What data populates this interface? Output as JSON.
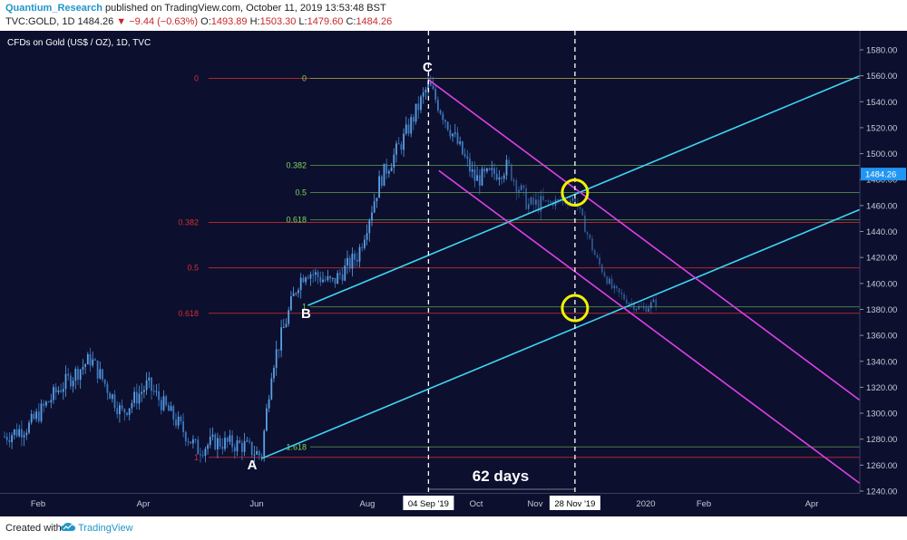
{
  "header": {
    "author": "Quantium_Research",
    "published": "published on TradingView.com, October 11, 2019 13:53:48 BST",
    "symbol": "TVC:GOLD, 1D",
    "last": "1484.26",
    "change": "▼ −9.44 (−0.63%)",
    "o_label": "O:",
    "o_val": "1493.89",
    "h_label": "H:",
    "h_val": "1503.30",
    "l_label": "L:",
    "l_val": "1479.60",
    "c_label": "C:",
    "c_val": "1484.26"
  },
  "footer": {
    "created_with": "Created with",
    "brand": "TradingView"
  },
  "colors": {
    "background": "#0c0f2e",
    "candle": "#5aa0e6",
    "trendline": "#3ed6f2",
    "channel": "#e040e6",
    "circle": "#f2f200",
    "fib_red": "#d32f2f",
    "fib_green": "#7ed957",
    "price_tag": "#2196f3"
  },
  "chart_data": {
    "type": "candlestick",
    "title": "CFDs on Gold (US$ / OZ), 1D, TVC",
    "ylim": [
      1235,
      1592
    ],
    "y_ticks": [
      1240,
      1260,
      1280,
      1300,
      1320,
      1340,
      1360,
      1380,
      1400,
      1420,
      1440,
      1460,
      1480,
      1500,
      1520,
      1540,
      1560,
      1580
    ],
    "x_labels": [
      "Feb",
      "Apr",
      "Jun",
      "Aug",
      "Oct",
      "Nov",
      "2020",
      "Feb",
      "Apr"
    ],
    "last_price": "1484.26",
    "price_path": [
      [
        "2019-01-01",
        1282
      ],
      [
        "2019-01-15",
        1290
      ],
      [
        "2019-02-01",
        1318
      ],
      [
        "2019-02-20",
        1342
      ],
      [
        "2019-03-10",
        1300
      ],
      [
        "2019-03-25",
        1322
      ],
      [
        "2019-04-10",
        1295
      ],
      [
        "2019-04-23",
        1272
      ],
      [
        "2019-05-03",
        1278
      ],
      [
        "2019-05-20",
        1275
      ],
      [
        "2019-05-30",
        1267
      ],
      [
        "2019-06-05",
        1335
      ],
      [
        "2019-06-20",
        1400
      ],
      [
        "2019-06-25",
        1410
      ],
      [
        "2019-07-10",
        1400
      ],
      [
        "2019-07-25",
        1422
      ],
      [
        "2019-08-07",
        1480
      ],
      [
        "2019-08-20",
        1510
      ],
      [
        "2019-09-04",
        1553
      ],
      [
        "2019-09-20",
        1510
      ],
      [
        "2019-10-01",
        1480
      ],
      [
        "2019-10-11",
        1484
      ],
      [
        "2019-10-20",
        1490
      ],
      [
        "2019-11-01",
        1460
      ],
      [
        "2019-11-28",
        1465
      ],
      [
        "2019-12-10",
        1420
      ],
      [
        "2019-12-20",
        1395
      ],
      [
        "2020-01-05",
        1380
      ],
      [
        "2020-01-15",
        1386
      ]
    ],
    "points": [
      {
        "label": "A",
        "date": "2019-05-30",
        "price": 1265
      },
      {
        "label": "B",
        "date": "2019-06-26",
        "price": 1383
      },
      {
        "label": "C",
        "date": "2019-09-04",
        "price": 1557
      }
    ],
    "fib_red": [
      {
        "label": "0",
        "price": 1558
      },
      {
        "label": "0.382",
        "price": 1447
      },
      {
        "label": "0.5",
        "price": 1412
      },
      {
        "label": "0.618",
        "price": 1377
      },
      {
        "label": "1",
        "price": 1266
      }
    ],
    "fib_green": [
      {
        "label": "0",
        "price": 1558
      },
      {
        "label": "0.382",
        "price": 1491
      },
      {
        "label": "0.5",
        "price": 1470
      },
      {
        "label": "0.618",
        "price": 1449
      },
      {
        "label": "1",
        "price": 1382
      },
      {
        "label": "1.618",
        "price": 1274
      }
    ],
    "vertical_markers": [
      "04 Sep '19",
      "28 Nov '19"
    ],
    "annotation": "62 days",
    "circles": [
      {
        "date": "2019-11-28",
        "price": 1470
      },
      {
        "date": "2019-11-28",
        "price": 1381
      }
    ]
  }
}
